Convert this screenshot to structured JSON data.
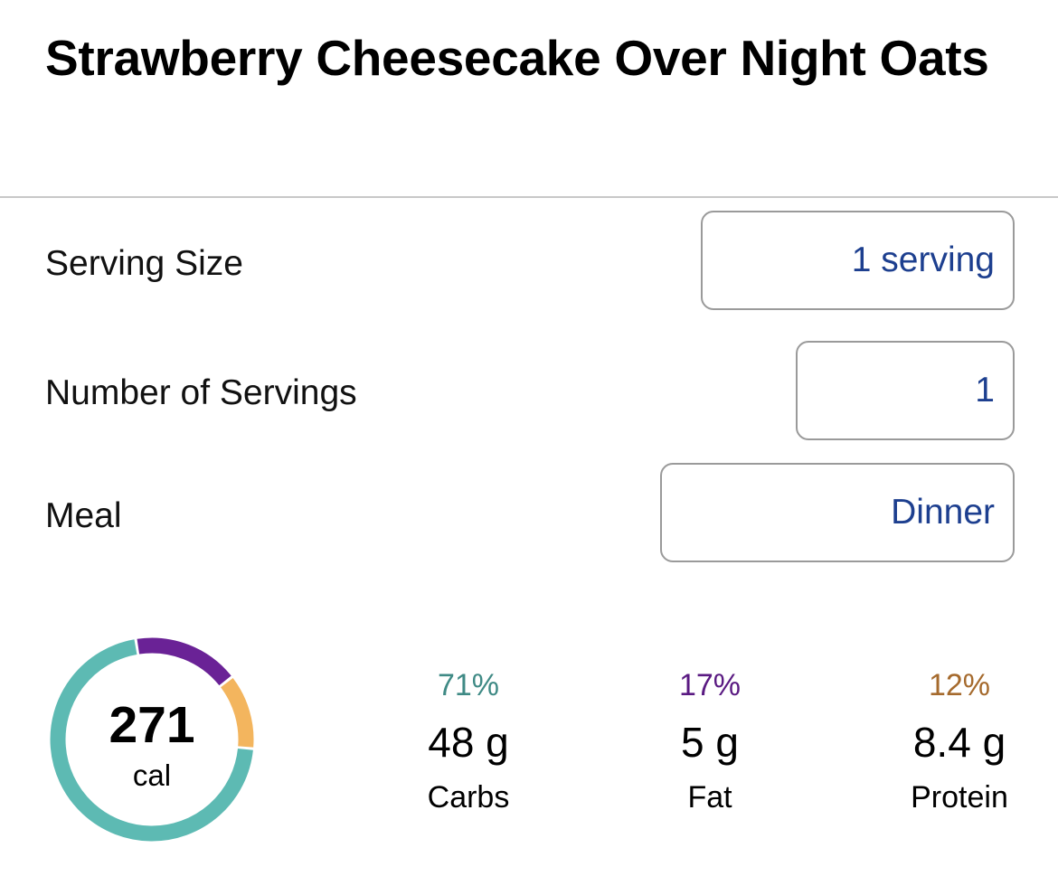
{
  "recipe": {
    "title": "Strawberry Cheesecake Over Night Oats"
  },
  "fields": {
    "serving_size": {
      "label": "Serving Size",
      "value": "1 serving"
    },
    "num_servings": {
      "label": "Number of Servings",
      "value": "1"
    },
    "meal": {
      "label": "Meal",
      "value": "Dinner"
    }
  },
  "calories": {
    "value": "271",
    "unit": "cal"
  },
  "macros": [
    {
      "percent": "71%",
      "amount": "48 g",
      "name": "Carbs",
      "fraction": 0.71,
      "color": "#5dbab3",
      "label_color": "#3f8a85"
    },
    {
      "percent": "17%",
      "amount": "5 g",
      "name": "Fat",
      "fraction": 0.17,
      "color": "#6a2296",
      "label_color": "#5a1a82"
    },
    {
      "percent": "12%",
      "amount": "8.4 g",
      "name": "Protein",
      "fraction": 0.12,
      "color": "#f3b55e",
      "label_color": "#a56a2d"
    }
  ],
  "colors": {
    "field_value": "#1d3f8f",
    "field_border": "#9a9a9a",
    "divider": "#c8c8c8"
  }
}
